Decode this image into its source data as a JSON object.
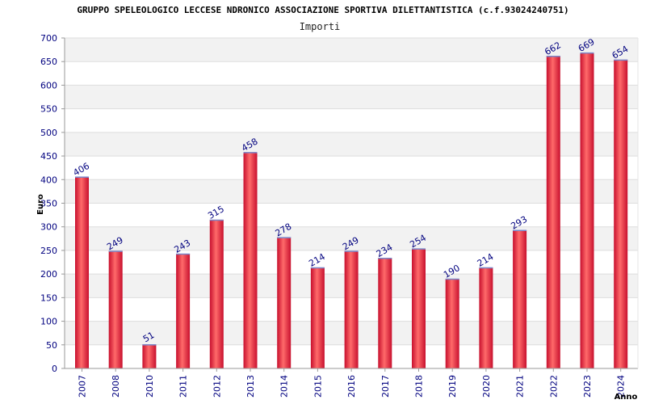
{
  "chart_data": {
    "type": "bar",
    "title": "GRUPPO SPELEOLOGICO LECCESE NDRONICO ASSOCIAZIONE SPORTIVA DILETTANTISTICA (c.f.93024240751)",
    "subtitle": "Importi",
    "xlabel": "Anno",
    "ylabel": "Euro",
    "ylim": [
      0,
      700
    ],
    "ytick_step": 50,
    "grid": true,
    "categories": [
      "2007",
      "2008",
      "2010",
      "2011",
      "2012",
      "2013",
      "2014",
      "2015",
      "2016",
      "2017",
      "2018",
      "2019",
      "2020",
      "2021",
      "2022",
      "2023",
      "2024"
    ],
    "values": [
      406,
      249,
      51,
      243,
      315,
      458,
      278,
      214,
      249,
      234,
      254,
      190,
      214,
      293,
      662,
      669,
      654
    ],
    "colors": {
      "bar_edge": "#c8102e",
      "bar_mid": "#ff5a5a",
      "bar_top": "#7a86c8",
      "band": "#f2f2f2",
      "gridline": "#dddddd",
      "axis": "#999999",
      "tick_text": "#00007f"
    }
  }
}
